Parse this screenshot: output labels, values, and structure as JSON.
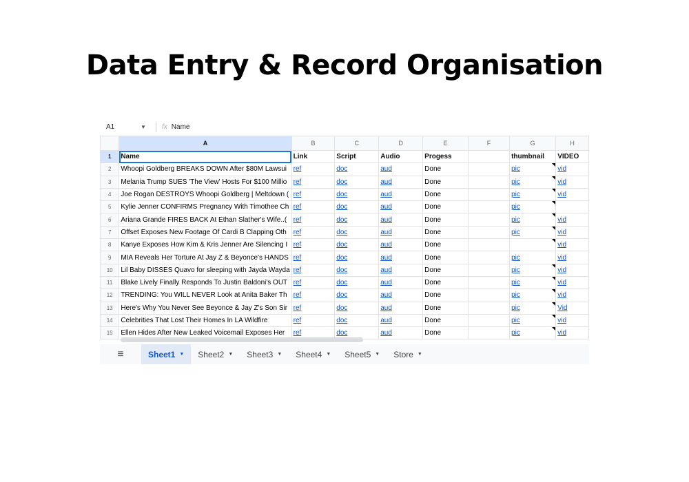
{
  "title": "Data Entry & Record Organisation",
  "formula_bar": {
    "cell_ref": "A1",
    "fx": "fx",
    "value": "Name"
  },
  "columns": [
    "A",
    "B",
    "C",
    "D",
    "E",
    "F",
    "G",
    "H"
  ],
  "header_row": [
    "Name",
    "Link",
    "Script",
    "Audio",
    "Progess",
    "",
    "thumbnail",
    "VIDEO"
  ],
  "rows": [
    {
      "n": "2",
      "name": "Whoopi Goldberg BREAKS DOWN After $80M Lawsui",
      "link": "ref",
      "script": "doc",
      "audio": "aud",
      "progress": "Done",
      "thumb": "pic",
      "video": "vid"
    },
    {
      "n": "3",
      "name": "Melania Trump SUES 'The View' Hosts For $100 Millio",
      "link": "ref",
      "script": "doc",
      "audio": "aud",
      "progress": "Done",
      "thumb": "pic",
      "video": "vid"
    },
    {
      "n": "4",
      "name": "Joe Rogan DESTROYS Whoopi Goldberg | Meltdown (",
      "link": "ref",
      "script": "doc",
      "audio": "aud",
      "progress": "Done",
      "thumb": "pic",
      "video": "vid"
    },
    {
      "n": "5",
      "name": "Kylie Jenner CONFIRMS Pregnancy With Timothee Ch",
      "link": "ref",
      "script": "doc",
      "audio": "aud",
      "progress": "Done",
      "thumb": "pic",
      "video": ""
    },
    {
      "n": "6",
      "name": "Ariana Grande FIRES BACK At Ethan Slather's Wife..(",
      "link": "ref",
      "script": "doc",
      "audio": "aud",
      "progress": "Done",
      "thumb": "pic",
      "video": "vid"
    },
    {
      "n": "7",
      "name": "Offset Exposes New Footage Of Cardi B Clapping Oth",
      "link": "ref",
      "script": "doc",
      "audio": "aud",
      "progress": "Done",
      "thumb": "pic",
      "video": "vid"
    },
    {
      "n": "8",
      "name": "Kanye Exposes How Kim & Kris Jenner Are Silencing I",
      "link": "ref",
      "script": "doc",
      "audio": "aud",
      "progress": "Done",
      "thumb": "",
      "video": "vid"
    },
    {
      "n": "9",
      "name": "MIA Reveals Her Torture At Jay Z & Beyonce's HANDS",
      "link": "ref",
      "script": "doc",
      "audio": "aud",
      "progress": "Done",
      "thumb": "pic",
      "video": "vid"
    },
    {
      "n": "10",
      "name": "Lil Baby DISSES Quavo for sleeping with Jayda Wayda",
      "link": "ref",
      "script": "doc",
      "audio": "aud",
      "progress": "Done",
      "thumb": "pic",
      "video": "vid"
    },
    {
      "n": "11",
      "name": "Blake Lively Finally Responds To Justin Baldoni's OUT",
      "link": "ref",
      "script": "doc",
      "audio": "aud",
      "progress": "Done",
      "thumb": "pic",
      "video": "vid"
    },
    {
      "n": "12",
      "name": "TRENDING: You WILL NEVER Look at Anita Baker Th",
      "link": "ref",
      "script": "doc",
      "audio": "aud",
      "progress": "Done",
      "thumb": "pic",
      "video": "vid"
    },
    {
      "n": "13",
      "name": "Here's Why You Never See Beyonce & Jay Z's Son Sir",
      "link": "ref",
      "script": "doc",
      "audio": "aud",
      "progress": "Done",
      "thumb": "pic",
      "video": "Vid"
    },
    {
      "n": "14",
      "name": "Celebrities That Lost Their Homes In LA Wildfire",
      "link": "ref",
      "script": "doc",
      "audio": "aud",
      "progress": "Done",
      "thumb": "pic",
      "video": "vid"
    },
    {
      "n": "15",
      "name": "Ellen Hides After New Leaked Voicemail Exposes Her",
      "link": "ref",
      "script": "doc",
      "audio": "aud",
      "progress": "Done",
      "thumb": "pic",
      "video": "vid"
    }
  ],
  "tabs": [
    "Sheet1",
    "Sheet2",
    "Sheet3",
    "Sheet4",
    "Sheet5",
    "Store"
  ],
  "active_tab": "Sheet1",
  "colors": {
    "accent": "#1a73e8",
    "link": "#1155cc",
    "selected_header": "#d3e3fd"
  }
}
